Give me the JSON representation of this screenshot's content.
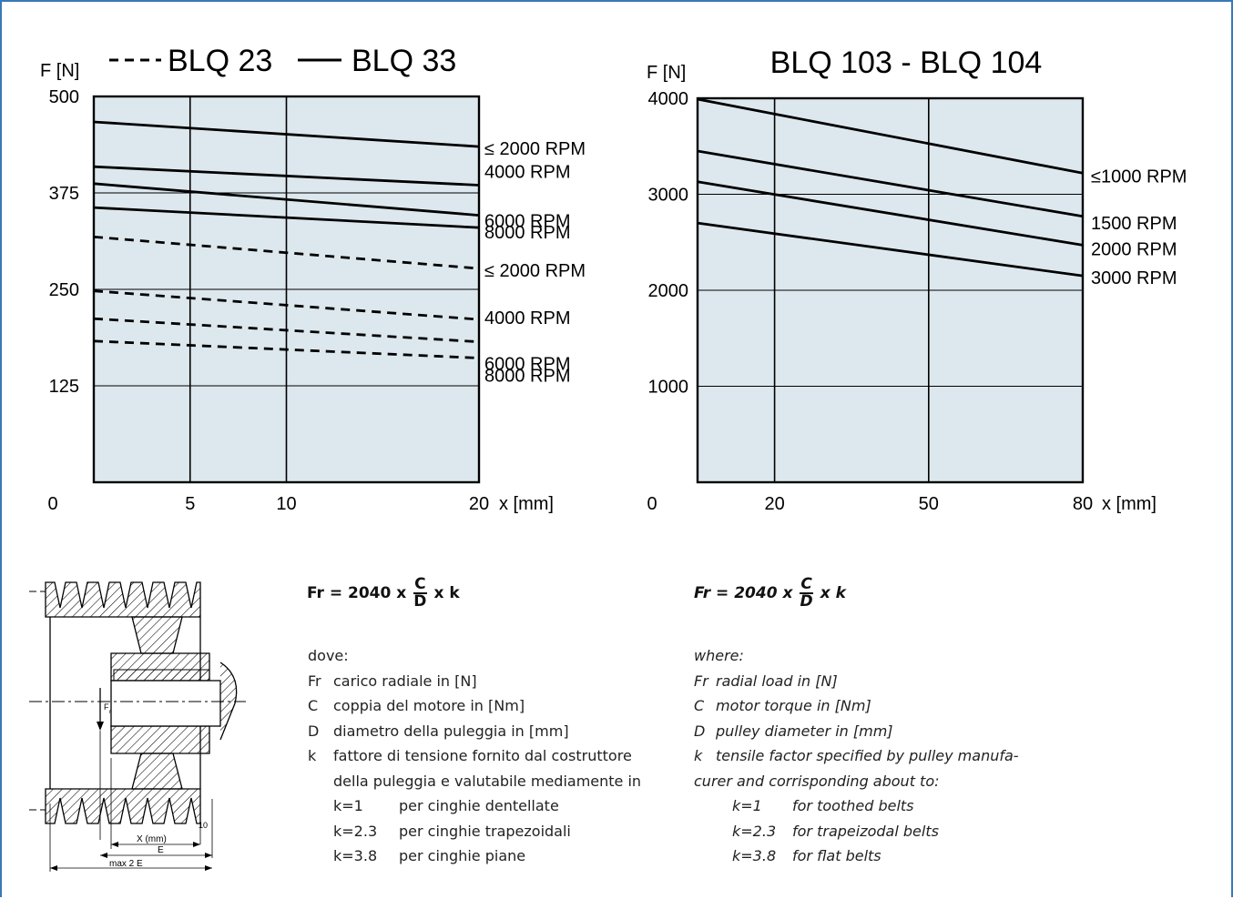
{
  "colors": {
    "plot_bg": "#dde8ee",
    "frame": "#3a78b8",
    "line": "#000000"
  },
  "chart_data": [
    {
      "type": "line",
      "title": "--- BLQ 23   — BLQ 33",
      "legend": [
        {
          "label": "BLQ 23",
          "style": "dashed"
        },
        {
          "label": "BLQ 33",
          "style": "solid"
        }
      ],
      "ylabel": "F [N]",
      "xlabel": "x [mm]",
      "yticks": [
        "500",
        "375",
        "250",
        "125"
      ],
      "ytick_values": [
        500,
        375,
        250,
        125
      ],
      "xticks": [
        "5",
        "10",
        "20"
      ],
      "xtick_values": [
        5,
        10,
        20
      ],
      "origin_label": "0",
      "xlim": [
        0,
        20
      ],
      "ylim": [
        0,
        500
      ],
      "grid": true,
      "series": [
        {
          "name": "≤ 2000  RPM",
          "product": "BLQ 33",
          "style": "solid",
          "x": [
            0,
            20
          ],
          "y": [
            467,
            435
          ]
        },
        {
          "name": "4000  RPM",
          "product": "BLQ 33",
          "style": "solid",
          "x": [
            0,
            20
          ],
          "y": [
            409,
            385
          ]
        },
        {
          "name": "6000  RPM",
          "product": "BLQ 33",
          "style": "solid",
          "x": [
            0,
            20
          ],
          "y": [
            387,
            346
          ]
        },
        {
          "name": "8000  RPM",
          "product": "BLQ 33",
          "style": "solid",
          "x": [
            0,
            20
          ],
          "y": [
            356,
            330
          ]
        },
        {
          "name": "≤ 2000  RPM",
          "product": "BLQ 23",
          "style": "dashed",
          "x": [
            0,
            20
          ],
          "y": [
            318,
            277
          ]
        },
        {
          "name": "4000  RPM",
          "product": "BLQ 23",
          "style": "dashed",
          "x": [
            0,
            20
          ],
          "y": [
            248,
            211
          ]
        },
        {
          "name": "6000  RPM",
          "product": "BLQ 23",
          "style": "dashed",
          "x": [
            0,
            20
          ],
          "y": [
            212,
            182
          ]
        },
        {
          "name": "8000  RPM",
          "product": "BLQ 23",
          "style": "dashed",
          "x": [
            0,
            20
          ],
          "y": [
            183,
            161
          ]
        }
      ]
    },
    {
      "type": "line",
      "title": "BLQ 103 - BLQ 104",
      "ylabel": "F [N]",
      "xlabel": "x [mm]",
      "yticks": [
        "4000",
        "3000",
        "2000",
        "1000"
      ],
      "ytick_values": [
        4000,
        3000,
        2000,
        1000
      ],
      "xticks": [
        "20",
        "50",
        "80"
      ],
      "xtick_values": [
        20,
        50,
        80
      ],
      "origin_label": "0",
      "xlim": [
        5,
        80
      ],
      "ylim": [
        0,
        4000
      ],
      "grid": true,
      "series": [
        {
          "name": "≤1000  RPM",
          "style": "solid",
          "x": [
            5,
            80
          ],
          "y": [
            3990,
            3220
          ]
        },
        {
          "name": "1500  RPM",
          "style": "solid",
          "x": [
            5,
            80
          ],
          "y": [
            3450,
            2770
          ]
        },
        {
          "name": "2000  RPM",
          "style": "solid",
          "x": [
            5,
            80
          ],
          "y": [
            3130,
            2470
          ]
        },
        {
          "name": "3000  RPM",
          "style": "solid",
          "x": [
            5,
            80
          ],
          "y": [
            2700,
            2150
          ]
        }
      ]
    }
  ],
  "diagram": {
    "labels": {
      "fr": "F",
      "fr_sub": "r",
      "x": "X (mm)",
      "e": "E",
      "max": "max 2 E",
      "ten": "10"
    }
  },
  "italian": {
    "formula": {
      "prefix": "Fr = 2040 x ",
      "num": "C",
      "den": "D",
      "suffix": " x k"
    },
    "intro": "dove:",
    "defs": [
      {
        "sym": "Fr",
        "text": "carico radiale in [N]"
      },
      {
        "sym": "C",
        "text": "coppia del motore in [Nm]"
      },
      {
        "sym": "D",
        "text": "diametro della puleggia in [mm]"
      },
      {
        "sym": "k",
        "text": "fattore di tensione fornito dal costruttore"
      }
    ],
    "cont": "della puleggia e valutabile mediamente in",
    "kvalues": [
      {
        "k": "k=1",
        "text": "per cinghie dentellate"
      },
      {
        "k": "k=2.3",
        "text": "per cinghie trapezoidali"
      },
      {
        "k": "k=3.8",
        "text": "per cinghie piane"
      }
    ]
  },
  "english": {
    "formula": {
      "prefix": "Fr = 2040 x ",
      "num": "C",
      "den": "D",
      "suffix": " x k"
    },
    "intro": "where:",
    "defs": [
      {
        "sym": "Fr",
        "text": "radial load in [N]"
      },
      {
        "sym": "C",
        "text": "motor torque in [Nm]"
      },
      {
        "sym": "D",
        "text": "pulley diameter in [mm]"
      },
      {
        "sym": "k",
        "text": "tensile factor specified by pulley manufa-"
      }
    ],
    "cont": "curer and corrisponding about to:",
    "kvalues": [
      {
        "k": "k=1",
        "text": "for toothed belts"
      },
      {
        "k": "k=2.3",
        "text": "for trapeizodal belts"
      },
      {
        "k": "k=3.8",
        "text": "for flat belts"
      }
    ]
  }
}
